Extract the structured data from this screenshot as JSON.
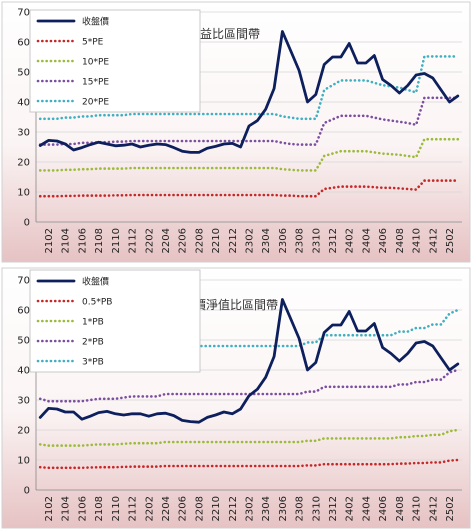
{
  "colors": {
    "close": "#0d1f5c",
    "band1": "#c62828",
    "band2": "#9bbb3a",
    "band3": "#7b4fa0",
    "band4": "#3fb0c2"
  },
  "chart_data": [
    {
      "type": "line",
      "title": "本益比區間帶",
      "categories": [
        "2101",
        "2102",
        "2103",
        "2104",
        "2105",
        "2106",
        "2107",
        "2108",
        "2109",
        "2110",
        "2111",
        "2112",
        "2201",
        "2202",
        "2203",
        "2204",
        "2205",
        "2206",
        "2207",
        "2208",
        "2209",
        "2210",
        "2211",
        "2212",
        "2301",
        "2302",
        "2303",
        "2304",
        "2305",
        "2306",
        "2307",
        "2308",
        "2309",
        "2310",
        "2311",
        "2312",
        "2401",
        "2402",
        "2403",
        "2404",
        "2405",
        "2406",
        "2407",
        "2408",
        "2409",
        "2410",
        "2411",
        "2412",
        "2501",
        "2502",
        "2503"
      ],
      "tick_labels": [
        "2102",
        "2104",
        "2106",
        "2108",
        "2110",
        "2112",
        "2202",
        "2204",
        "2206",
        "2208",
        "2210",
        "2212",
        "2302",
        "2304",
        "2306",
        "2308",
        "2310",
        "2312",
        "2402",
        "2404",
        "2406",
        "2408",
        "2410",
        "2412",
        "2502"
      ],
      "yticks": [
        0,
        10,
        20,
        30,
        40,
        50,
        60,
        70
      ],
      "ylim": [
        0,
        70
      ],
      "legend_position": "top-left",
      "series": [
        {
          "name": "收盤價",
          "style": "solid",
          "color": "#0d1f5c",
          "values": [
            25.5,
            27.2,
            27.0,
            26.0,
            24.0,
            24.8,
            25.8,
            26.6,
            26.0,
            25.4,
            25.6,
            26.0,
            25.0,
            25.6,
            26.0,
            25.8,
            24.8,
            23.6,
            23.2,
            23.2,
            24.6,
            25.2,
            26.0,
            26.2,
            25.0,
            32.0,
            33.8,
            37.6,
            44.5,
            63.5,
            57.0,
            50.5,
            40.0,
            42.5,
            52.5,
            55.0,
            55.0,
            59.5,
            53.0,
            53.0,
            55.5,
            47.5,
            45.5,
            43.0,
            45.5,
            49.0,
            49.5,
            48.0,
            44.0,
            40.0,
            42.0
          ]
        },
        {
          "name": "5*PE",
          "style": "dotted",
          "color": "#c62828",
          "values": [
            8.6,
            8.6,
            8.6,
            8.7,
            8.7,
            8.8,
            8.8,
            8.8,
            8.8,
            8.9,
            8.9,
            9.0,
            9.0,
            9.0,
            9.0,
            9.0,
            9.0,
            9.0,
            9.0,
            9.0,
            9.0,
            9.0,
            9.0,
            9.0,
            9.0,
            9.0,
            9.0,
            9.0,
            9.0,
            8.8,
            8.8,
            8.6,
            8.6,
            8.6,
            11.0,
            11.4,
            11.8,
            11.8,
            11.8,
            11.8,
            11.6,
            11.4,
            11.4,
            11.2,
            11.0,
            10.8,
            13.8,
            13.8,
            13.8,
            13.8,
            13.8
          ]
        },
        {
          "name": "10*PE",
          "style": "dotted",
          "color": "#9bbb3a",
          "values": [
            17.2,
            17.2,
            17.2,
            17.4,
            17.4,
            17.6,
            17.6,
            17.8,
            17.8,
            17.8,
            17.8,
            18.0,
            18.0,
            18.0,
            18.0,
            18.0,
            18.0,
            18.0,
            18.0,
            18.0,
            18.0,
            18.0,
            18.0,
            18.0,
            18.0,
            18.0,
            18.0,
            18.0,
            18.0,
            17.6,
            17.4,
            17.2,
            17.2,
            17.2,
            22.0,
            22.8,
            23.6,
            23.6,
            23.6,
            23.6,
            23.2,
            22.8,
            22.6,
            22.4,
            22.0,
            21.6,
            27.6,
            27.6,
            27.6,
            27.6,
            27.6
          ]
        },
        {
          "name": "15*PE",
          "style": "dotted",
          "color": "#7b4fa0",
          "values": [
            25.8,
            25.8,
            25.8,
            26.0,
            26.0,
            26.4,
            26.4,
            26.6,
            26.6,
            26.8,
            26.8,
            27.0,
            27.0,
            27.0,
            27.0,
            27.0,
            27.0,
            27.0,
            27.0,
            27.0,
            27.0,
            27.0,
            27.0,
            27.0,
            27.0,
            27.0,
            27.0,
            27.0,
            27.0,
            26.4,
            26.0,
            25.8,
            25.8,
            25.8,
            33.0,
            34.2,
            35.4,
            35.4,
            35.4,
            35.4,
            34.8,
            34.2,
            33.8,
            33.4,
            33.0,
            32.4,
            41.4,
            41.4,
            41.4,
            41.4,
            41.4
          ]
        },
        {
          "name": "20*PE",
          "style": "dotted",
          "color": "#3fb0c2",
          "values": [
            34.4,
            34.4,
            34.4,
            34.8,
            34.8,
            35.2,
            35.2,
            35.6,
            35.6,
            35.6,
            35.6,
            36.0,
            36.0,
            36.0,
            36.0,
            36.0,
            36.0,
            36.0,
            36.0,
            36.0,
            36.0,
            36.0,
            36.0,
            36.0,
            36.0,
            36.0,
            36.0,
            36.0,
            36.0,
            35.2,
            34.8,
            34.4,
            34.4,
            34.4,
            44.0,
            45.6,
            47.2,
            47.2,
            47.2,
            47.2,
            46.4,
            45.6,
            45.2,
            44.8,
            44.0,
            43.2,
            55.2,
            55.2,
            55.2,
            55.2,
            55.2
          ]
        }
      ]
    },
    {
      "type": "line",
      "title": "股價淨值比區間帶",
      "categories": [
        "2101",
        "2102",
        "2103",
        "2104",
        "2105",
        "2106",
        "2107",
        "2108",
        "2109",
        "2110",
        "2111",
        "2112",
        "2201",
        "2202",
        "2203",
        "2204",
        "2205",
        "2206",
        "2207",
        "2208",
        "2209",
        "2210",
        "2211",
        "2212",
        "2301",
        "2302",
        "2303",
        "2304",
        "2305",
        "2306",
        "2307",
        "2308",
        "2309",
        "2310",
        "2311",
        "2312",
        "2401",
        "2402",
        "2403",
        "2404",
        "2405",
        "2406",
        "2407",
        "2408",
        "2409",
        "2410",
        "2411",
        "2412",
        "2501",
        "2502",
        "2503"
      ],
      "tick_labels": [
        "2102",
        "2104",
        "2106",
        "2108",
        "2110",
        "2112",
        "2202",
        "2204",
        "2206",
        "2208",
        "2210",
        "2212",
        "2302",
        "2304",
        "2306",
        "2308",
        "2310",
        "2312",
        "2402",
        "2404",
        "2406",
        "2408",
        "2410",
        "2412",
        "2502"
      ],
      "yticks": [
        0,
        10,
        20,
        30,
        40,
        50,
        60,
        70
      ],
      "ylim": [
        0,
        70
      ],
      "legend_position": "top-left",
      "series": [
        {
          "name": "收盤價",
          "style": "solid",
          "color": "#0d1f5c",
          "values": [
            24.2,
            27.2,
            27.0,
            26.0,
            26.0,
            23.6,
            24.6,
            25.8,
            26.2,
            25.4,
            25.0,
            25.4,
            25.4,
            24.6,
            25.4,
            25.6,
            24.8,
            23.2,
            22.8,
            22.6,
            24.2,
            25.0,
            26.0,
            25.4,
            27.0,
            31.4,
            33.6,
            37.6,
            44.5,
            63.5,
            57.0,
            50.5,
            40.0,
            42.5,
            52.5,
            55.0,
            55.0,
            59.5,
            53.0,
            53.0,
            55.5,
            47.5,
            45.5,
            43.0,
            45.5,
            49.0,
            49.5,
            48.0,
            44.0,
            40.0,
            42.0
          ]
        },
        {
          "name": "0.5*PB",
          "style": "dotted",
          "color": "#c62828",
          "values": [
            7.6,
            7.4,
            7.4,
            7.4,
            7.4,
            7.4,
            7.5,
            7.6,
            7.6,
            7.6,
            7.7,
            7.8,
            7.8,
            7.8,
            7.8,
            8.0,
            8.0,
            8.0,
            8.0,
            8.0,
            8.0,
            8.0,
            8.0,
            8.0,
            8.0,
            8.0,
            8.0,
            8.0,
            8.0,
            8.0,
            8.0,
            8.0,
            8.2,
            8.2,
            8.6,
            8.6,
            8.6,
            8.6,
            8.6,
            8.6,
            8.6,
            8.6,
            8.6,
            8.8,
            8.8,
            9.0,
            9.0,
            9.2,
            9.2,
            9.8,
            10.0
          ]
        },
        {
          "name": "1*PB",
          "style": "dotted",
          "color": "#9bbb3a",
          "values": [
            15.2,
            14.8,
            14.8,
            14.8,
            14.8,
            14.8,
            15.0,
            15.2,
            15.2,
            15.2,
            15.4,
            15.6,
            15.6,
            15.6,
            15.6,
            16.0,
            16.0,
            16.0,
            16.0,
            16.0,
            16.0,
            16.0,
            16.0,
            16.0,
            16.0,
            16.0,
            16.0,
            16.0,
            16.0,
            16.0,
            16.0,
            16.0,
            16.4,
            16.4,
            17.2,
            17.2,
            17.2,
            17.2,
            17.2,
            17.2,
            17.2,
            17.2,
            17.2,
            17.6,
            17.6,
            18.0,
            18.0,
            18.4,
            18.4,
            19.6,
            20.0
          ]
        },
        {
          "name": "2*PB",
          "style": "dotted",
          "color": "#7b4fa0",
          "values": [
            30.4,
            29.6,
            29.6,
            29.6,
            29.6,
            29.6,
            30.0,
            30.4,
            30.4,
            30.4,
            30.8,
            31.2,
            31.2,
            31.2,
            31.2,
            32.0,
            32.0,
            32.0,
            32.0,
            32.0,
            32.0,
            32.0,
            32.0,
            32.0,
            32.0,
            32.0,
            32.0,
            32.0,
            32.0,
            32.0,
            32.0,
            32.0,
            32.8,
            32.8,
            34.4,
            34.4,
            34.4,
            34.4,
            34.4,
            34.4,
            34.4,
            34.4,
            34.4,
            35.2,
            35.2,
            36.0,
            36.0,
            36.8,
            36.8,
            39.2,
            40.0
          ]
        },
        {
          "name": "3*PB",
          "style": "dotted",
          "color": "#3fb0c2",
          "values": [
            45.6,
            44.4,
            44.4,
            44.4,
            44.4,
            44.4,
            45.0,
            45.6,
            45.6,
            45.6,
            46.2,
            46.8,
            46.8,
            46.8,
            46.8,
            48.0,
            48.0,
            48.0,
            48.0,
            48.0,
            48.0,
            48.0,
            48.0,
            48.0,
            48.0,
            48.0,
            48.0,
            48.0,
            48.0,
            48.0,
            48.0,
            48.0,
            49.2,
            49.2,
            51.6,
            51.6,
            51.6,
            51.6,
            51.6,
            51.6,
            51.6,
            51.6,
            51.6,
            52.8,
            52.8,
            54.0,
            54.0,
            55.2,
            55.2,
            58.8,
            60.0
          ]
        }
      ]
    }
  ]
}
